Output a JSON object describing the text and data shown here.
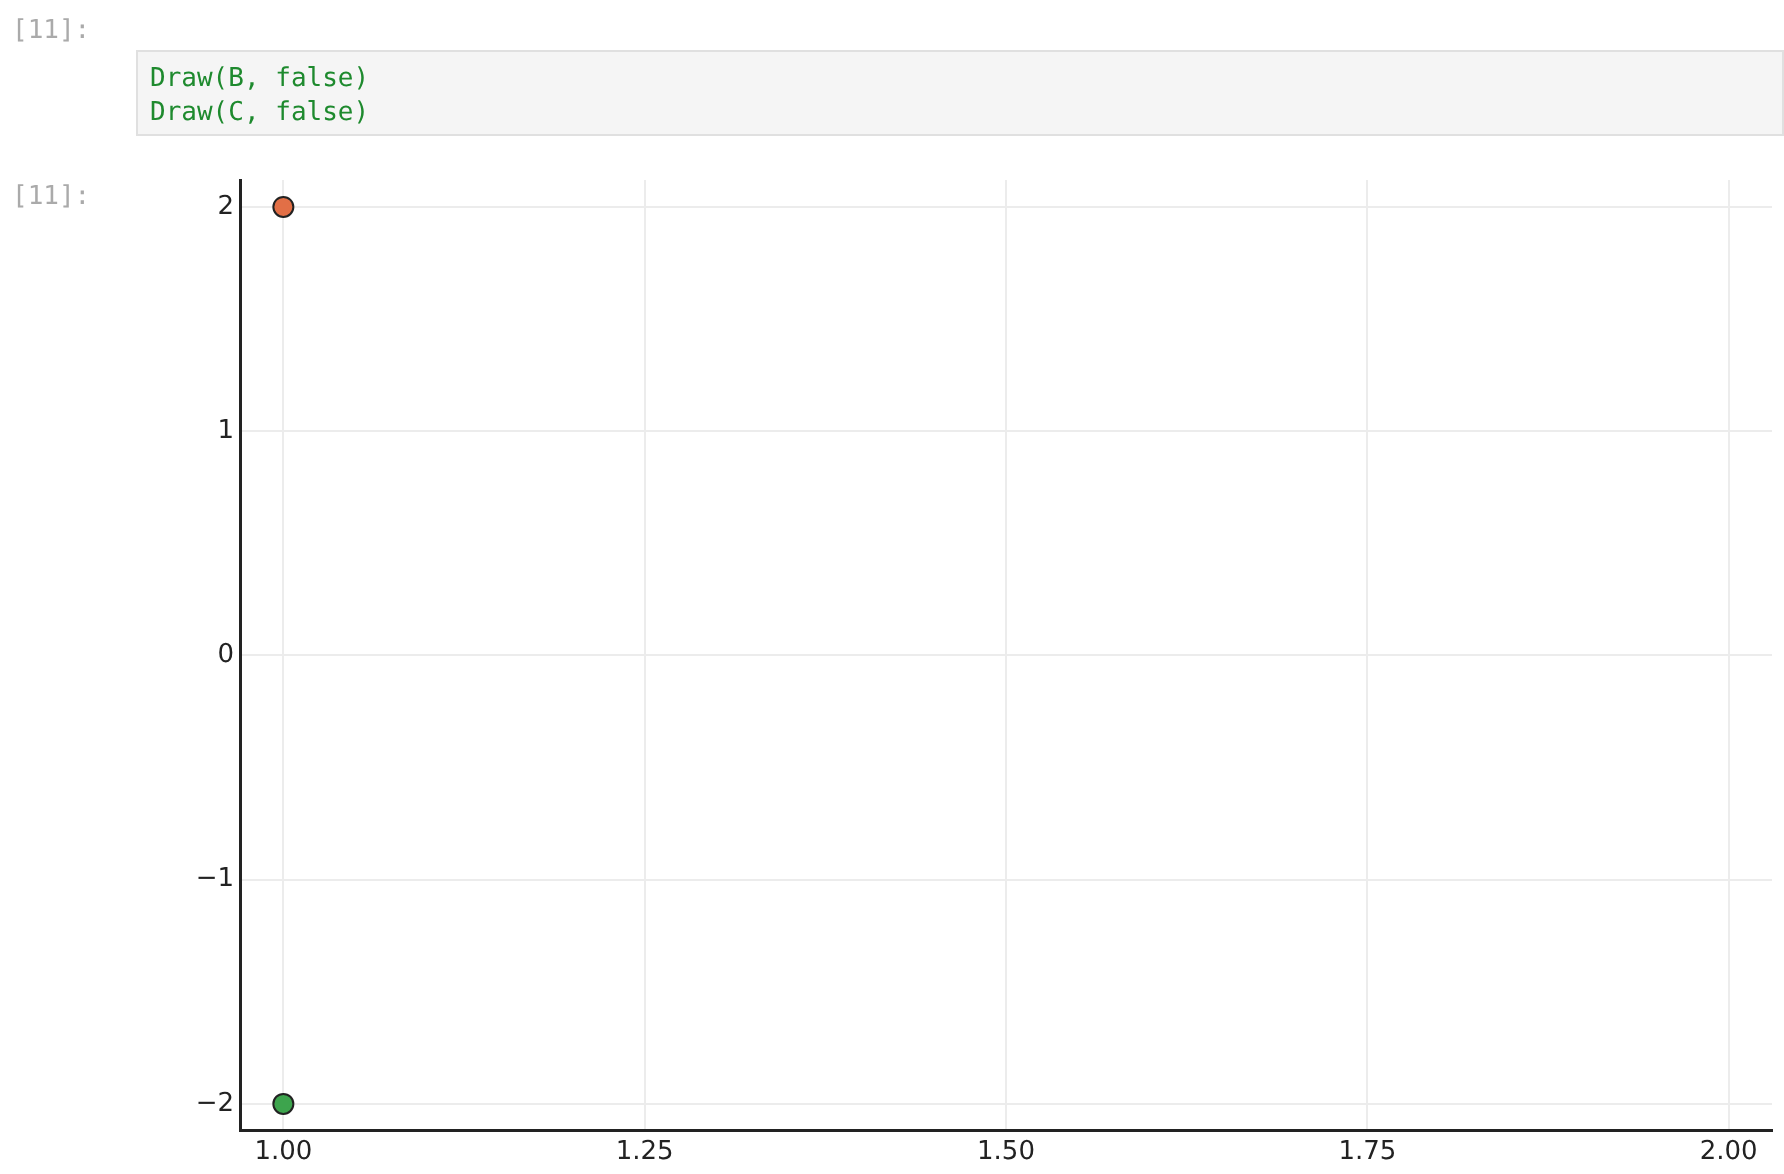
{
  "chart_data": {
    "type": "scatter",
    "annotations": [
      "[11]:",
      "Draw(B, false)\nDraw(C, false)",
      "[11]:"
    ],
    "series": [
      {
        "color": "#e26f46",
        "x": [
          1
        ],
        "values": [
          2
        ]
      },
      {
        "color": "#3da44d",
        "x": [
          1
        ],
        "values": [
          -2
        ]
      }
    ],
    "xlim": [
      0.97,
      2.03
    ],
    "xticks": [
      {
        "value": 1,
        "label": "1.00"
      },
      1.25,
      {
        "value": 1.5,
        "label": "1.50"
      },
      1.75,
      {
        "value": 2,
        "label": "2.00"
      }
    ],
    "ylim": [
      -2.12,
      2.12
    ],
    "yticks": [
      {
        "value": -2,
        "label": "−2"
      },
      {
        "value": -1,
        "label": "−1"
      },
      0,
      1,
      2
    ],
    "grid": true,
    "legend": false,
    "marker": "circle"
  }
}
